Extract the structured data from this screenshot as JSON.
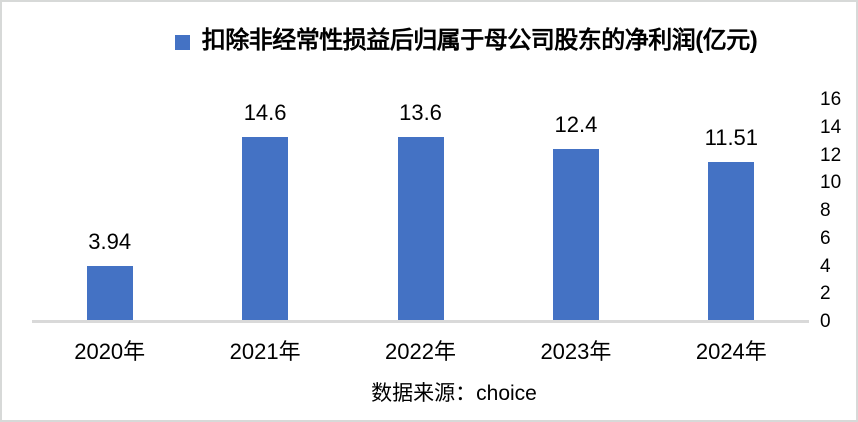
{
  "legend": {
    "marker_color": "#4472C4"
  },
  "source": {
    "text": "数据来源：choice"
  },
  "chart_data": {
    "type": "bar",
    "title": "扣除非经常性损益后归属于母公司股东的净利润(亿元)",
    "categories": [
      "2020年",
      "2021年",
      "2022年",
      "2023年",
      "2024年"
    ],
    "values": [
      3.94,
      14.6,
      13.6,
      12.4,
      11.51
    ],
    "value_labels": [
      "3.94",
      "14.6",
      "13.6",
      "12.4",
      "11.51"
    ],
    "xlabel": "",
    "ylabel": "",
    "ylim": [
      0,
      16
    ],
    "yticks": [
      0,
      2,
      4,
      6,
      8,
      10,
      12,
      14,
      16
    ],
    "yaxis_side": "right",
    "grid": false,
    "legend_position": "top",
    "bar_color": "#4472C4",
    "axis_line_color": "#D9D9D9",
    "background_color": "#FFFFFF"
  }
}
